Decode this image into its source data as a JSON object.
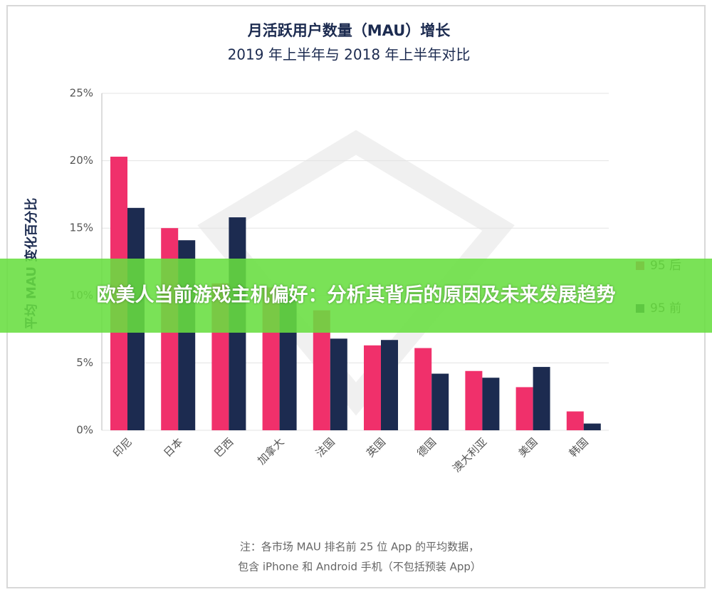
{
  "chart_data": {
    "type": "bar",
    "title": "月活跃用户数量（MAU）增长",
    "subtitle": "2019 年上半年与 2018 年上半年对比",
    "y_label": "平均 MAU 变化百分比",
    "categories": [
      "印尼",
      "日本",
      "巴西",
      "加拿大",
      "法国",
      "英国",
      "德国",
      "澳大利亚",
      "美国",
      "韩国"
    ],
    "series": [
      {
        "name": "95 后",
        "color": "#f0306b",
        "values": [
          20.3,
          15.0,
          10.9,
          10.6,
          8.9,
          6.3,
          6.1,
          4.4,
          3.2,
          1.4
        ]
      },
      {
        "name": "95 前",
        "color": "#1c2b50",
        "values": [
          16.5,
          14.1,
          15.8,
          10.1,
          6.8,
          6.7,
          4.2,
          3.9,
          4.7,
          0.5
        ]
      }
    ],
    "ylim": [
      0,
      25
    ],
    "yticks": [
      {
        "value": 0,
        "label": "0%"
      },
      {
        "value": 5,
        "label": "5%"
      },
      {
        "value": 10,
        "label": "10%"
      },
      {
        "value": 15,
        "label": "15%"
      },
      {
        "value": 20,
        "label": "20%"
      },
      {
        "value": 25,
        "label": "25%"
      }
    ],
    "grid": true,
    "legend": "right"
  },
  "note": [
    "注：各市场 MAU 排名前 25 位 App 的平均数据，",
    "包含 iPhone 和 Android 手机（不包括预装 App）"
  ],
  "banner": "欧美人当前游戏主机偏好：分析其背后的原因及未来发展趋势"
}
